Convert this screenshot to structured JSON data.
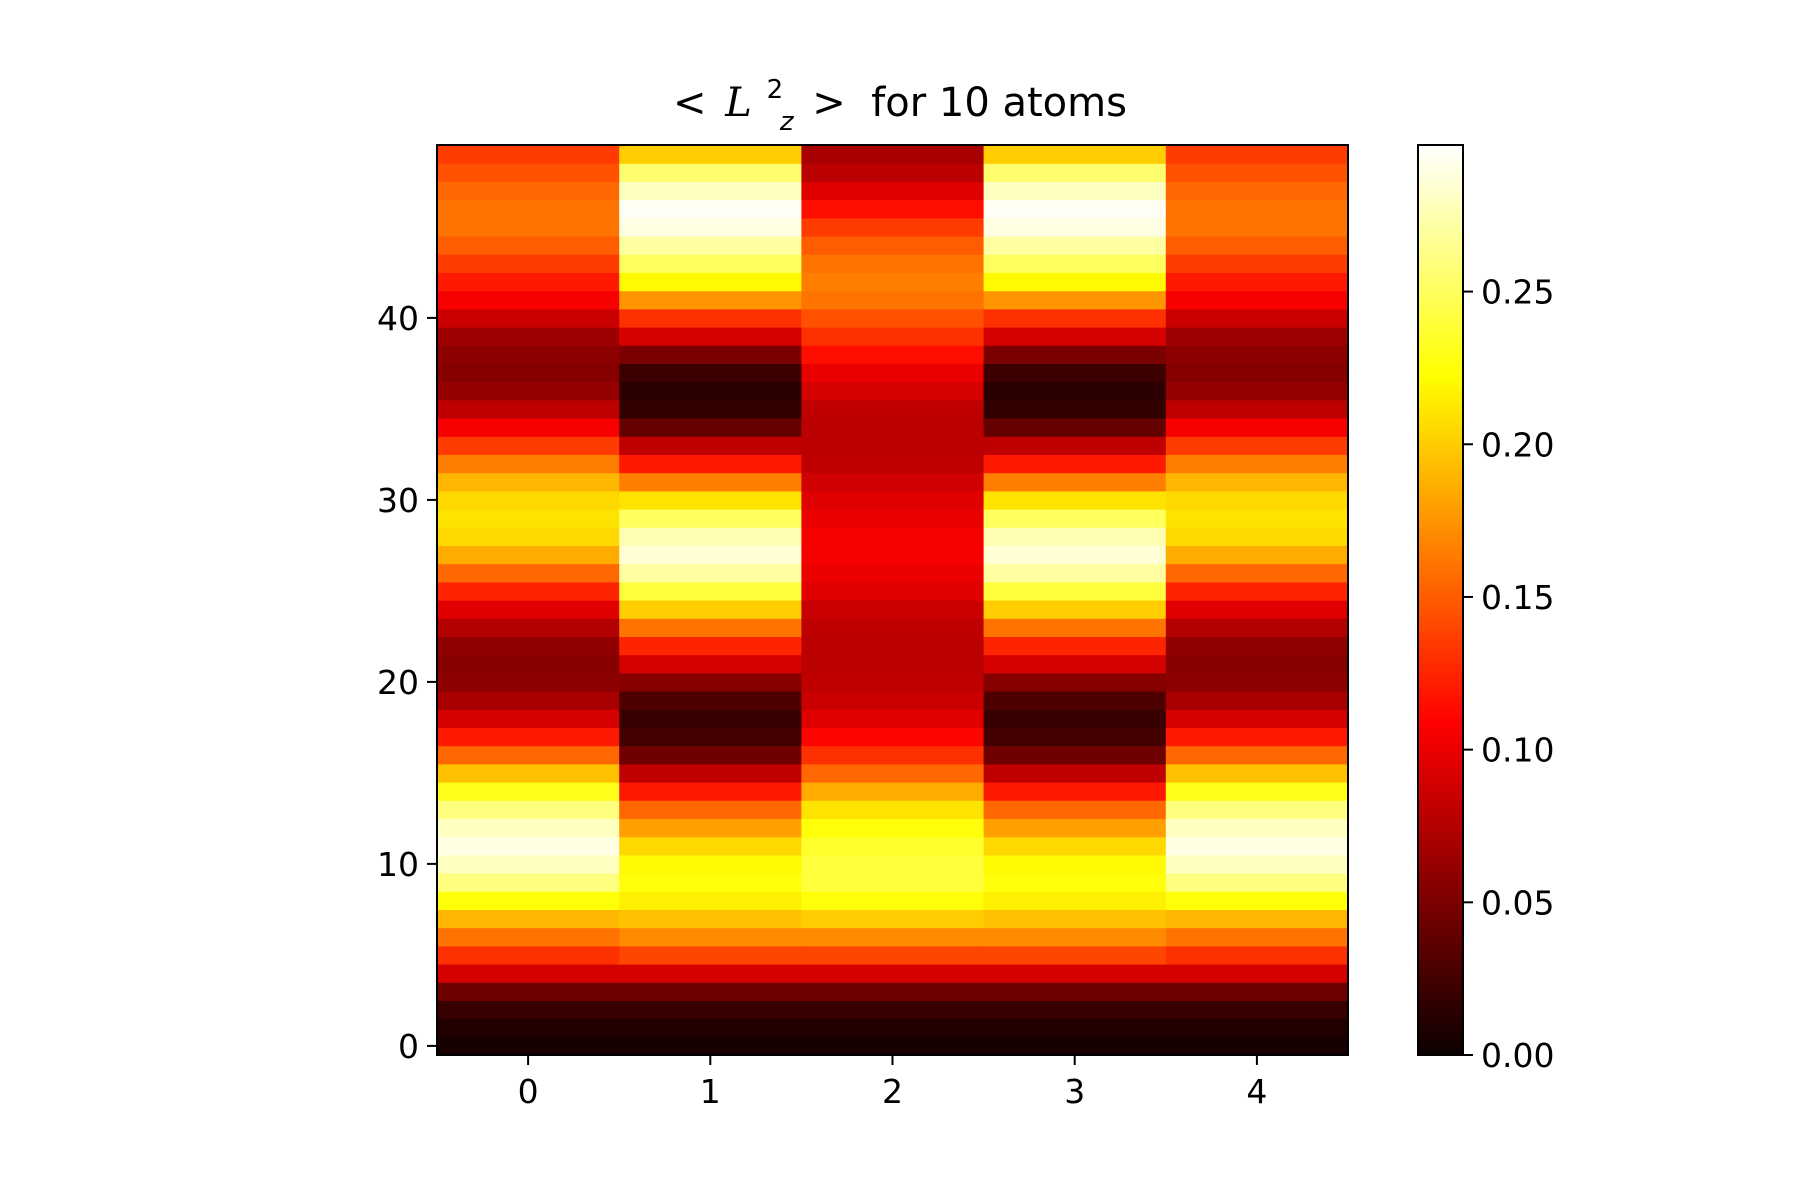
{
  "chart_data": {
    "type": "heatmap",
    "title": {
      "prefix": "<",
      "symbol": "L",
      "superscript": "2",
      "subscript": "z",
      "suffix": ">",
      "rest": " for 10 atoms"
    },
    "xlabel": "",
    "ylabel": "",
    "colormap": "hot",
    "x_ticks": [
      "0",
      "1",
      "2",
      "3",
      "4"
    ],
    "y_ticks": [
      "0",
      "10",
      "20",
      "30",
      "40"
    ],
    "x_tick_values": [
      0,
      1,
      2,
      3,
      4
    ],
    "y_tick_values": [
      0,
      10,
      20,
      30,
      40
    ],
    "xlim": [
      -0.5,
      4.5
    ],
    "ylim": [
      -0.5,
      49.5
    ],
    "colorbar": {
      "vmin": 0.0,
      "vmax": 0.298,
      "ticks": [
        "0.00",
        "0.05",
        "0.10",
        "0.15",
        "0.20",
        "0.25"
      ],
      "tick_values": [
        0.0,
        0.05,
        0.1,
        0.15,
        0.2,
        0.25
      ]
    },
    "columns": [
      0,
      1,
      2,
      3,
      4
    ],
    "rows": 50,
    "series": [
      {
        "column": 0,
        "values": [
          0.005,
          0.01,
          0.02,
          0.045,
          0.09,
          0.13,
          0.16,
          0.19,
          0.225,
          0.26,
          0.28,
          0.29,
          0.28,
          0.26,
          0.23,
          0.195,
          0.155,
          0.12,
          0.09,
          0.07,
          0.058,
          0.055,
          0.06,
          0.075,
          0.095,
          0.125,
          0.155,
          0.185,
          0.205,
          0.21,
          0.205,
          0.19,
          0.165,
          0.135,
          0.105,
          0.08,
          0.062,
          0.055,
          0.058,
          0.065,
          0.085,
          0.105,
          0.12,
          0.135,
          0.15,
          0.16,
          0.16,
          0.155,
          0.145,
          0.135
        ]
      },
      {
        "column": 1,
        "values": [
          0.005,
          0.01,
          0.02,
          0.045,
          0.09,
          0.14,
          0.17,
          0.195,
          0.215,
          0.225,
          0.22,
          0.205,
          0.18,
          0.155,
          0.12,
          0.08,
          0.045,
          0.025,
          0.02,
          0.03,
          0.055,
          0.09,
          0.125,
          0.16,
          0.2,
          0.24,
          0.27,
          0.285,
          0.275,
          0.25,
          0.21,
          0.165,
          0.12,
          0.08,
          0.04,
          0.018,
          0.015,
          0.022,
          0.05,
          0.09,
          0.13,
          0.175,
          0.22,
          0.25,
          0.27,
          0.29,
          0.295,
          0.28,
          0.255,
          0.2
        ]
      },
      {
        "column": 2,
        "values": [
          0.005,
          0.01,
          0.02,
          0.045,
          0.09,
          0.14,
          0.17,
          0.2,
          0.225,
          0.24,
          0.24,
          0.235,
          0.225,
          0.21,
          0.185,
          0.155,
          0.13,
          0.11,
          0.095,
          0.085,
          0.08,
          0.078,
          0.078,
          0.08,
          0.085,
          0.095,
          0.1,
          0.105,
          0.105,
          0.1,
          0.095,
          0.088,
          0.08,
          0.078,
          0.078,
          0.08,
          0.09,
          0.1,
          0.115,
          0.13,
          0.145,
          0.16,
          0.165,
          0.16,
          0.15,
          0.135,
          0.115,
          0.095,
          0.078,
          0.07
        ]
      },
      {
        "column": 3,
        "values": [
          0.005,
          0.01,
          0.02,
          0.045,
          0.09,
          0.14,
          0.17,
          0.195,
          0.215,
          0.225,
          0.22,
          0.205,
          0.18,
          0.155,
          0.12,
          0.08,
          0.045,
          0.025,
          0.02,
          0.03,
          0.055,
          0.09,
          0.125,
          0.16,
          0.2,
          0.24,
          0.27,
          0.285,
          0.275,
          0.25,
          0.21,
          0.165,
          0.12,
          0.08,
          0.04,
          0.018,
          0.015,
          0.022,
          0.05,
          0.09,
          0.13,
          0.175,
          0.22,
          0.25,
          0.27,
          0.29,
          0.295,
          0.28,
          0.255,
          0.2
        ]
      },
      {
        "column": 4,
        "values": [
          0.005,
          0.01,
          0.02,
          0.045,
          0.09,
          0.13,
          0.16,
          0.19,
          0.225,
          0.26,
          0.28,
          0.29,
          0.28,
          0.26,
          0.23,
          0.195,
          0.155,
          0.12,
          0.09,
          0.07,
          0.058,
          0.055,
          0.06,
          0.075,
          0.095,
          0.125,
          0.155,
          0.185,
          0.205,
          0.21,
          0.205,
          0.19,
          0.165,
          0.135,
          0.105,
          0.08,
          0.062,
          0.055,
          0.058,
          0.065,
          0.085,
          0.105,
          0.12,
          0.135,
          0.15,
          0.16,
          0.16,
          0.155,
          0.145,
          0.135
        ]
      }
    ]
  }
}
